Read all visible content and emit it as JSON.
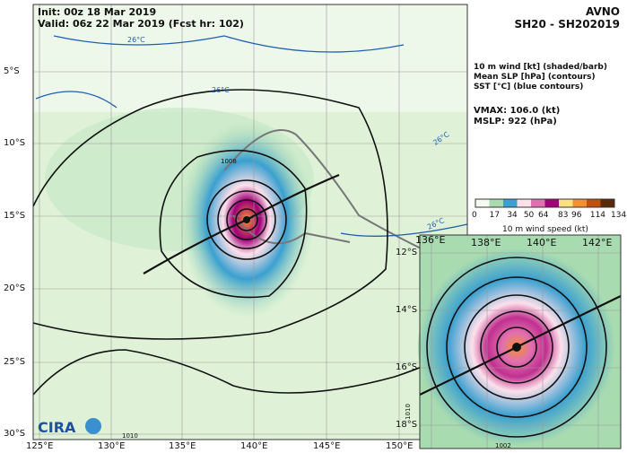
{
  "header": {
    "init": "Init:   00z 18 Mar 2019",
    "valid": "Valid: 06z 22 Mar 2019 (Fcst hr: 102)"
  },
  "model": {
    "name": "AVNO",
    "storm": "SH20 - SH202019"
  },
  "legend_text": [
    "10 m wind [kt] (shaded/barb)",
    "Mean SLP [hPa] (contours)",
    "SST [°C] (blue contours)"
  ],
  "stats": {
    "vmax": "VMAX: 106.0 (kt)",
    "mslp": "MSLP:  922 (hPa)"
  },
  "colorbar": {
    "title": "10 m wind speed (kt)",
    "ticks": [
      "0",
      "17",
      "34",
      "50",
      "64",
      "83",
      "96",
      "114",
      "134"
    ],
    "colors": [
      "#f4fbf0",
      "#a9dbb0",
      "#3aa0d0",
      "#fde0ea",
      "#e070b0",
      "#a0007a",
      "#ffe080",
      "#f59030",
      "#c05010",
      "#5a2a08"
    ]
  },
  "main_map": {
    "lon_labels": [
      "125°E",
      "130°E",
      "135°E",
      "140°E",
      "145°E",
      "150°E"
    ],
    "lat_labels": [
      "5°S",
      "10°S",
      "15°S",
      "20°S",
      "25°S",
      "30°S"
    ],
    "contour_labels": [
      "1008",
      "1010"
    ],
    "sst_labels": [
      "26°C",
      "26°C",
      "26°C",
      "26°C"
    ]
  },
  "inset_map": {
    "lon_labels": [
      "136°E",
      "138°E",
      "140°E",
      "142°E"
    ],
    "lat_labels": [
      "12°S",
      "14°S",
      "16°S",
      "18°S"
    ],
    "contour_labels": [
      "1010",
      "1002"
    ]
  },
  "logo": "CIRA"
}
